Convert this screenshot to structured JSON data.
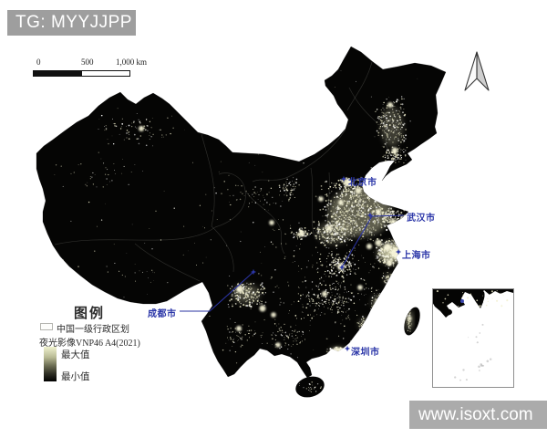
{
  "badge": {
    "text": "TG: MYYJJPP"
  },
  "watermark": {
    "text": "www.isoxt.com"
  },
  "scale_bar": {
    "tick_0": "0",
    "tick_500": "500",
    "tick_1000": "1,000 km"
  },
  "legend": {
    "title": "图例",
    "admin_label": "中国一级行政区划",
    "layer_label": "夜光影像VNP46 A4(2021)",
    "max_label": "最大值",
    "min_label": "最小值"
  },
  "map": {
    "cities": [
      {
        "label": "北京市"
      },
      {
        "label": "武汉市"
      },
      {
        "label": "上海市"
      },
      {
        "label": "成都市"
      },
      {
        "label": "深圳市"
      }
    ],
    "colors": {
      "land": "#050504",
      "lights": "#f2f0cd",
      "city_label": "#2b36a8",
      "leader_line": "#2a33a0",
      "badge_gray": "#9e9e9e",
      "watermark_gray": "#ababab"
    }
  }
}
